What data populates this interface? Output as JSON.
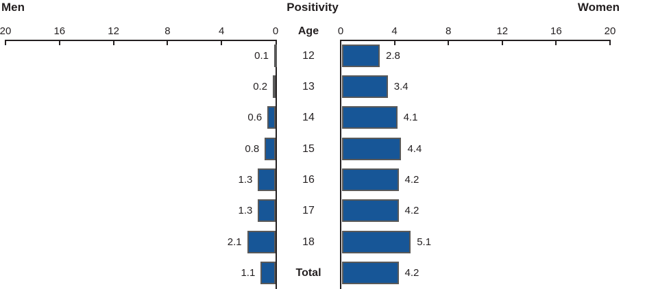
{
  "header": {
    "left_title": "Men",
    "center_title": "Positivity",
    "right_title": "Women",
    "age_header": "Age"
  },
  "chart_data": {
    "type": "bar",
    "subtype": "population-pyramid",
    "title": "Positivity",
    "center_axis_label": "Age",
    "categories": [
      "12",
      "13",
      "14",
      "15",
      "16",
      "17",
      "18",
      "Total"
    ],
    "series": [
      {
        "name": "Men",
        "side": "left",
        "values": [
          0.1,
          0.2,
          0.6,
          0.8,
          1.3,
          1.3,
          2.1,
          1.1
        ]
      },
      {
        "name": "Women",
        "side": "right",
        "values": [
          2.8,
          3.4,
          4.1,
          4.4,
          4.2,
          4.2,
          5.1,
          4.2
        ]
      }
    ],
    "axis": {
      "left_tick_labels": [
        20,
        16,
        12,
        8,
        4,
        0
      ],
      "right_tick_labels": [
        0,
        4,
        8,
        12,
        16,
        20
      ],
      "max": 20,
      "grid": false
    },
    "colors": {
      "bar_fill": "#175697",
      "bar_border": "#595959",
      "axis": "#231f20",
      "text": "#231f20"
    },
    "legend_position": "none"
  }
}
